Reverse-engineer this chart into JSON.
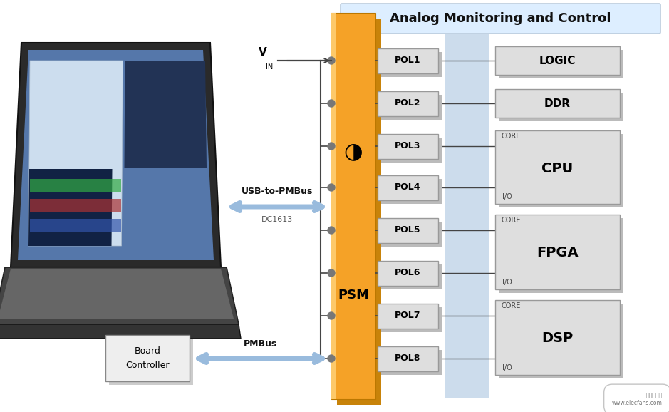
{
  "title": "Analog Monitoring and Control",
  "white_bg": "#ffffff",
  "psm_color": "#f5a227",
  "psm_dark": "#c8830a",
  "psm_light": "#fdc96a",
  "header_bg": "#ddeeff",
  "header_edge": "#bbccdd",
  "stripe_color": "#ccdcec",
  "box_face": "#dedede",
  "box_shadow": "#bbbbbb",
  "box_edge": "#999999",
  "pol_labels": [
    "POL1",
    "POL2",
    "POL3",
    "POL4",
    "POL5",
    "POL6",
    "POL7",
    "POL8"
  ],
  "arrow_color": "#99bbdd",
  "line_color": "#444444",
  "text_dark": "#111111",
  "psm_text": "PSM",
  "vin_label": "V",
  "vin_sub": "IN",
  "usb_label": "USB-to-PMBus",
  "dc_label": "DC1613",
  "pmbus_label": "PMBus",
  "bc_line1": "Board",
  "bc_line2": "Controller"
}
